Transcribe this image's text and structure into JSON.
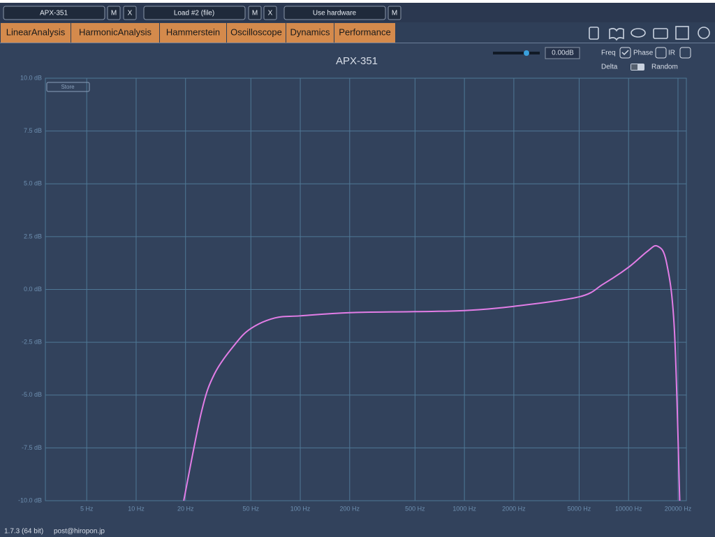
{
  "toolbar": {
    "device_1": "APX-351",
    "m_1": "M",
    "x_1": "X",
    "device_2": "Load #2 (file)",
    "m_2": "M",
    "x_2": "X",
    "device_3": "Use hardware",
    "m_3": "M"
  },
  "tabs": [
    "LinearAnalysis",
    "HarmonicAnalysis",
    "Hammerstein",
    "Oscilloscope",
    "Dynamics",
    "Performance"
  ],
  "controls": {
    "gain": "0.00dB",
    "freq": "Freq",
    "phase": "Phase",
    "ir": "IR",
    "delta": "Delta",
    "random": "Random",
    "store": "Store"
  },
  "footer": {
    "version": "1.7.3 (64 bit)",
    "email": "post@hiropon.jp"
  },
  "chart_data": {
    "type": "line",
    "title": "APX-351",
    "color": "#e27de6",
    "log_x": true,
    "grid": true,
    "x": [
      19.5,
      25,
      30,
      40,
      50,
      70,
      100,
      200,
      500,
      1000,
      2000,
      5000,
      7000,
      10000,
      13000,
      15000,
      17000,
      19000,
      20500
    ],
    "values": [
      -10,
      -5.8,
      -4.0,
      -2.6,
      -1.85,
      -1.35,
      -1.25,
      -1.1,
      -1.05,
      -1.0,
      -0.8,
      -0.35,
      0.25,
      1.05,
      1.8,
      2.05,
      1.3,
      -1.85,
      -10
    ],
    "xlim": [
      2.8,
      22500
    ],
    "ylim": [
      -10,
      10
    ],
    "xticks": [
      {
        "value": 5,
        "label": "5 Hz"
      },
      {
        "value": 10,
        "label": "10 Hz"
      },
      {
        "value": 20,
        "label": "20 Hz"
      },
      {
        "value": 50,
        "label": "50 Hz"
      },
      {
        "value": 100,
        "label": "100 Hz"
      },
      {
        "value": 200,
        "label": "200 Hz"
      },
      {
        "value": 500,
        "label": "500 Hz"
      },
      {
        "value": 1000,
        "label": "1000 Hz"
      },
      {
        "value": 2000,
        "label": "2000 Hz"
      },
      {
        "value": 5000,
        "label": "5000 Hz"
      },
      {
        "value": 10000,
        "label": "10000 Hz"
      },
      {
        "value": 20000,
        "label": "20000 Hz"
      }
    ],
    "yticks": [
      {
        "value": -10,
        "label": "-10.0 dB"
      },
      {
        "value": -7.5,
        "label": "-7.5 dB"
      },
      {
        "value": -5,
        "label": "-5.0 dB"
      },
      {
        "value": -2.5,
        "label": "-2.5 dB"
      },
      {
        "value": 0,
        "label": "0.0 dB"
      },
      {
        "value": 2.5,
        "label": "2.5 dB"
      },
      {
        "value": 5,
        "label": "5.0 dB"
      },
      {
        "value": 7.5,
        "label": "7.5 dB"
      },
      {
        "value": 10,
        "label": "10.0 dB"
      }
    ]
  }
}
